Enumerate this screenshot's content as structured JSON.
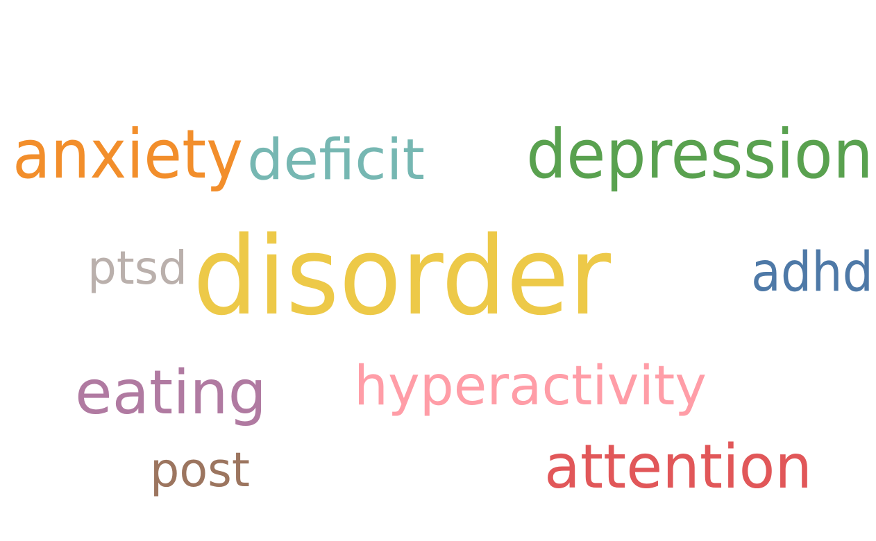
{
  "chart_data": {
    "type": "wordcloud",
    "words": [
      {
        "text": "disorder",
        "weight": 1.0,
        "color": "#EDC948"
      },
      {
        "text": "depression",
        "weight": 0.62,
        "color": "#59A14F"
      },
      {
        "text": "anxiety",
        "weight": 0.62,
        "color": "#F28E2B"
      },
      {
        "text": "deficit",
        "weight": 0.52,
        "color": "#76B7B2"
      },
      {
        "text": "eating",
        "weight": 0.56,
        "color": "#B07AA1"
      },
      {
        "text": "attention",
        "weight": 0.56,
        "color": "#E15759"
      },
      {
        "text": "hyperactivity",
        "weight": 0.5,
        "color": "#FF9DA7"
      },
      {
        "text": "adhd",
        "weight": 0.5,
        "color": "#4E79A7"
      },
      {
        "text": "post",
        "weight": 0.44,
        "color": "#9C755F"
      },
      {
        "text": "ptsd",
        "weight": 0.42,
        "color": "#BAB0AC"
      }
    ]
  }
}
